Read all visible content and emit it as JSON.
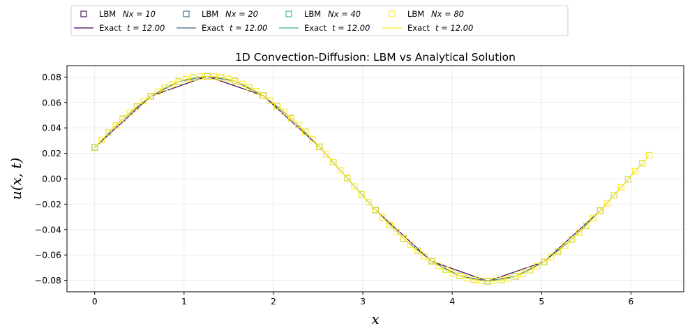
{
  "chart_data": {
    "type": "line",
    "title": "1D Convection-Diffusion: LBM vs Analytical Solution",
    "xlabel": "x",
    "ylabel": "u(x, t)",
    "xlim": [
      -0.31,
      6.59
    ],
    "ylim": [
      -0.089,
      0.089
    ],
    "xticks": [
      0,
      1,
      2,
      3,
      4,
      5,
      6
    ],
    "xtick_labels": [
      "0",
      "1",
      "2",
      "3",
      "4",
      "5",
      "6"
    ],
    "yticks": [
      -0.08,
      -0.06,
      -0.04,
      -0.02,
      0.0,
      0.02,
      0.04,
      0.06,
      0.08
    ],
    "ytick_labels": [
      "−0.08",
      "−0.06",
      "−0.04",
      "−0.02",
      "0.00",
      "0.02",
      "0.04",
      "0.06",
      "0.08"
    ],
    "grid": true,
    "legend_position": "top, above plot, 5 columns",
    "amplitude": 0.0806,
    "phase_shift": 0.31,
    "time": 12.0,
    "series": [
      {
        "nx": 10,
        "color": "#440154",
        "lbm_label": "LBM",
        "lbm_math": "Nx = 10",
        "exact_label": "Exact",
        "exact_math": "t = 12.00"
      },
      {
        "nx": 20,
        "color": "#31688e",
        "lbm_label": "LBM",
        "lbm_math": "Nx = 20",
        "exact_label": "Exact",
        "exact_math": "t = 12.00"
      },
      {
        "nx": 40,
        "color": "#35b779",
        "lbm_label": "LBM",
        "lbm_math": "Nx = 40",
        "exact_label": "Exact",
        "exact_math": "t = 12.00"
      },
      {
        "nx": 80,
        "color": "#fde725",
        "lbm_label": "LBM",
        "lbm_math": "Nx = 80",
        "exact_label": "Exact",
        "exact_math": "t = 12.00"
      }
    ]
  }
}
